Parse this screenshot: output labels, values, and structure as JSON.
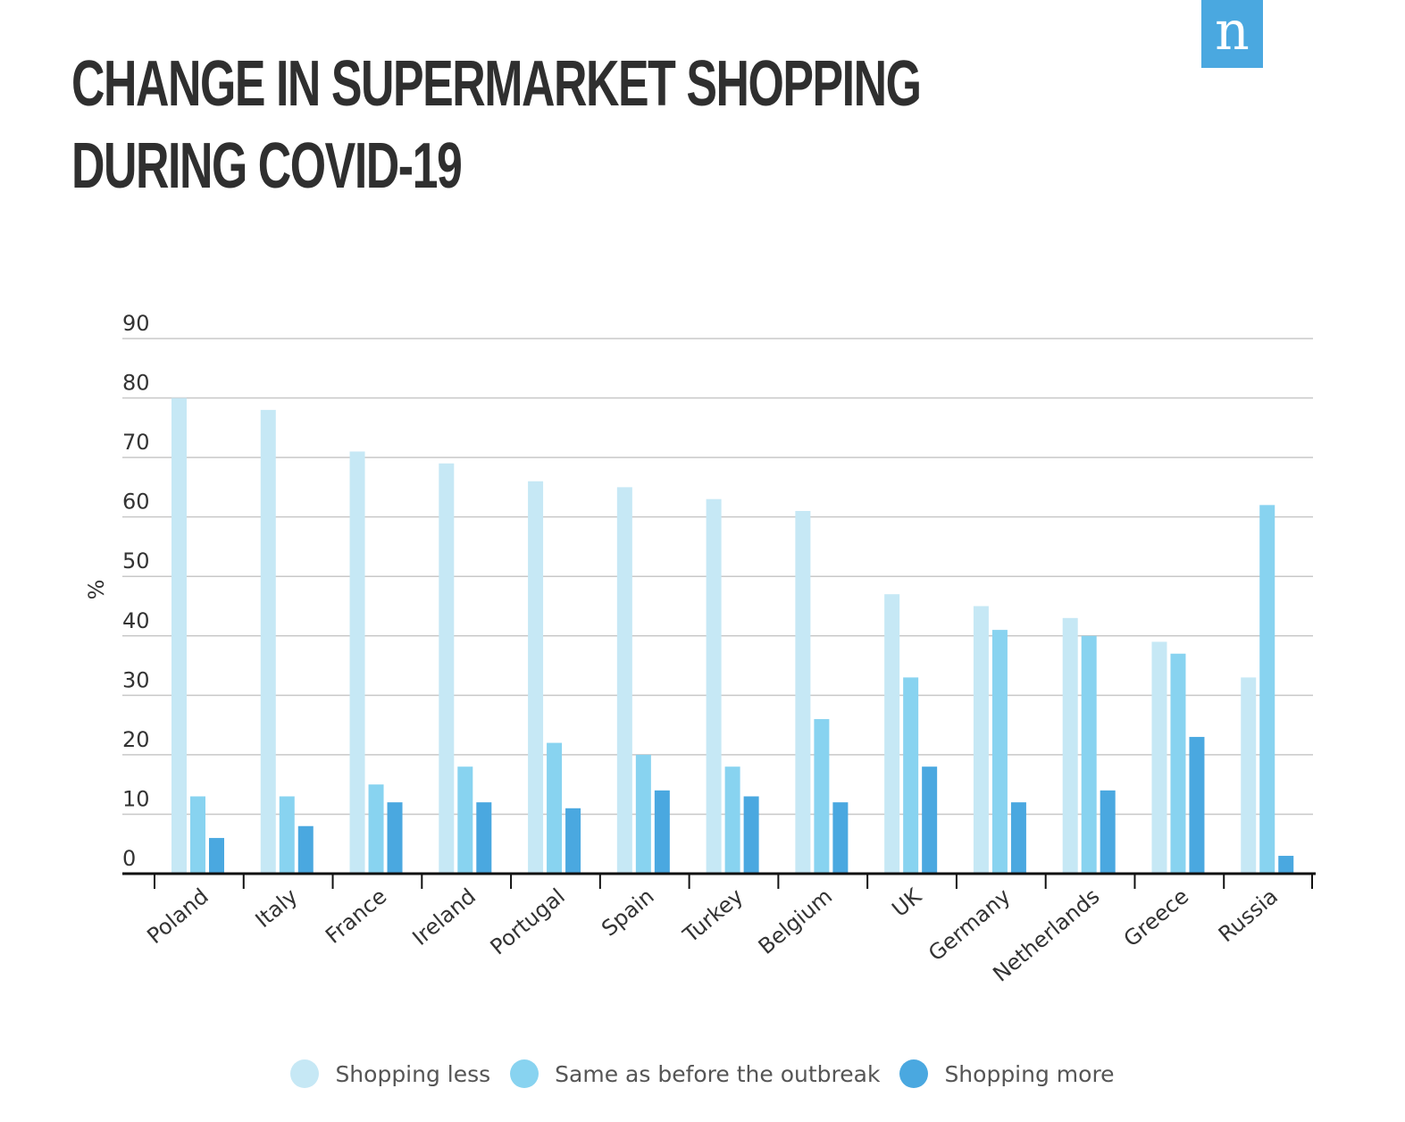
{
  "logo": "n",
  "chart_data": {
    "type": "bar",
    "title": "CHANGE IN SUPERMARKET SHOPPING DURING COVID-19",
    "xlabel": "",
    "ylabel": "%",
    "ylim": [
      0,
      90
    ],
    "yticks": [
      "0",
      "10",
      "20",
      "30",
      "40",
      "50",
      "60",
      "70",
      "80",
      "90"
    ],
    "grid": true,
    "legend_position": "bottom",
    "categories": [
      "Poland",
      "Italy",
      "France",
      "Ireland",
      "Portugal",
      "Spain",
      "Turkey",
      "Belgium",
      "UK",
      "Germany",
      "Netherlands",
      "Greece",
      "Russia"
    ],
    "series": [
      {
        "name": "Shopping less",
        "color": "#c6e8f5",
        "values": [
          80,
          78,
          71,
          69,
          66,
          65,
          63,
          61,
          47,
          45,
          43,
          39,
          33
        ]
      },
      {
        "name": "Same as before the outbreak",
        "color": "#88d3f0",
        "values": [
          13,
          13,
          15,
          18,
          22,
          20,
          18,
          26,
          33,
          41,
          40,
          37,
          62
        ]
      },
      {
        "name": "Shopping more",
        "color": "#4aa8e0",
        "values": [
          6,
          8,
          12,
          12,
          11,
          14,
          13,
          12,
          18,
          12,
          14,
          23,
          3
        ]
      }
    ]
  }
}
